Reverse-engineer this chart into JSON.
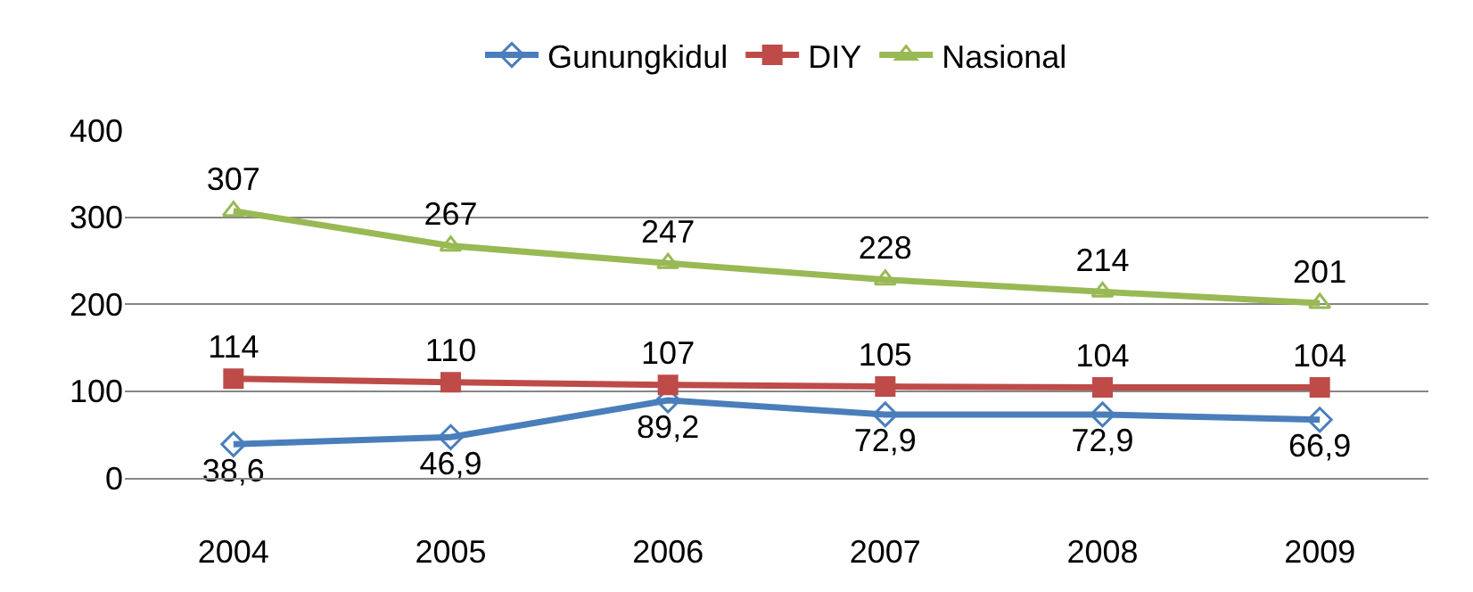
{
  "chart_data": {
    "type": "line",
    "categories": [
      "2004",
      "2005",
      "2006",
      "2007",
      "2008",
      "2009"
    ],
    "series": [
      {
        "name": "Gunungkidul",
        "color": "#4a7ebb",
        "marker": "diamond",
        "values": [
          38.6,
          46.9,
          89.2,
          72.9,
          72.9,
          66.9
        ],
        "value_labels": [
          "38,6",
          "46,9",
          "89,2",
          "72,9",
          "72,9",
          "66,9"
        ]
      },
      {
        "name": "DIY",
        "color": "#be4b48",
        "marker": "square",
        "values": [
          114,
          110,
          107,
          105,
          104,
          104
        ],
        "value_labels": [
          "114",
          "110",
          "107",
          "105",
          "104",
          "104"
        ]
      },
      {
        "name": "Nasional",
        "color": "#98b954",
        "marker": "triangle",
        "values": [
          307,
          267,
          247,
          228,
          214,
          201
        ],
        "value_labels": [
          "307",
          "267",
          "247",
          "228",
          "214",
          "201"
        ]
      }
    ],
    "ylim": [
      0,
      400
    ],
    "yticks": [
      0,
      100,
      200,
      300,
      400
    ],
    "grid": "y",
    "legend": "top"
  }
}
